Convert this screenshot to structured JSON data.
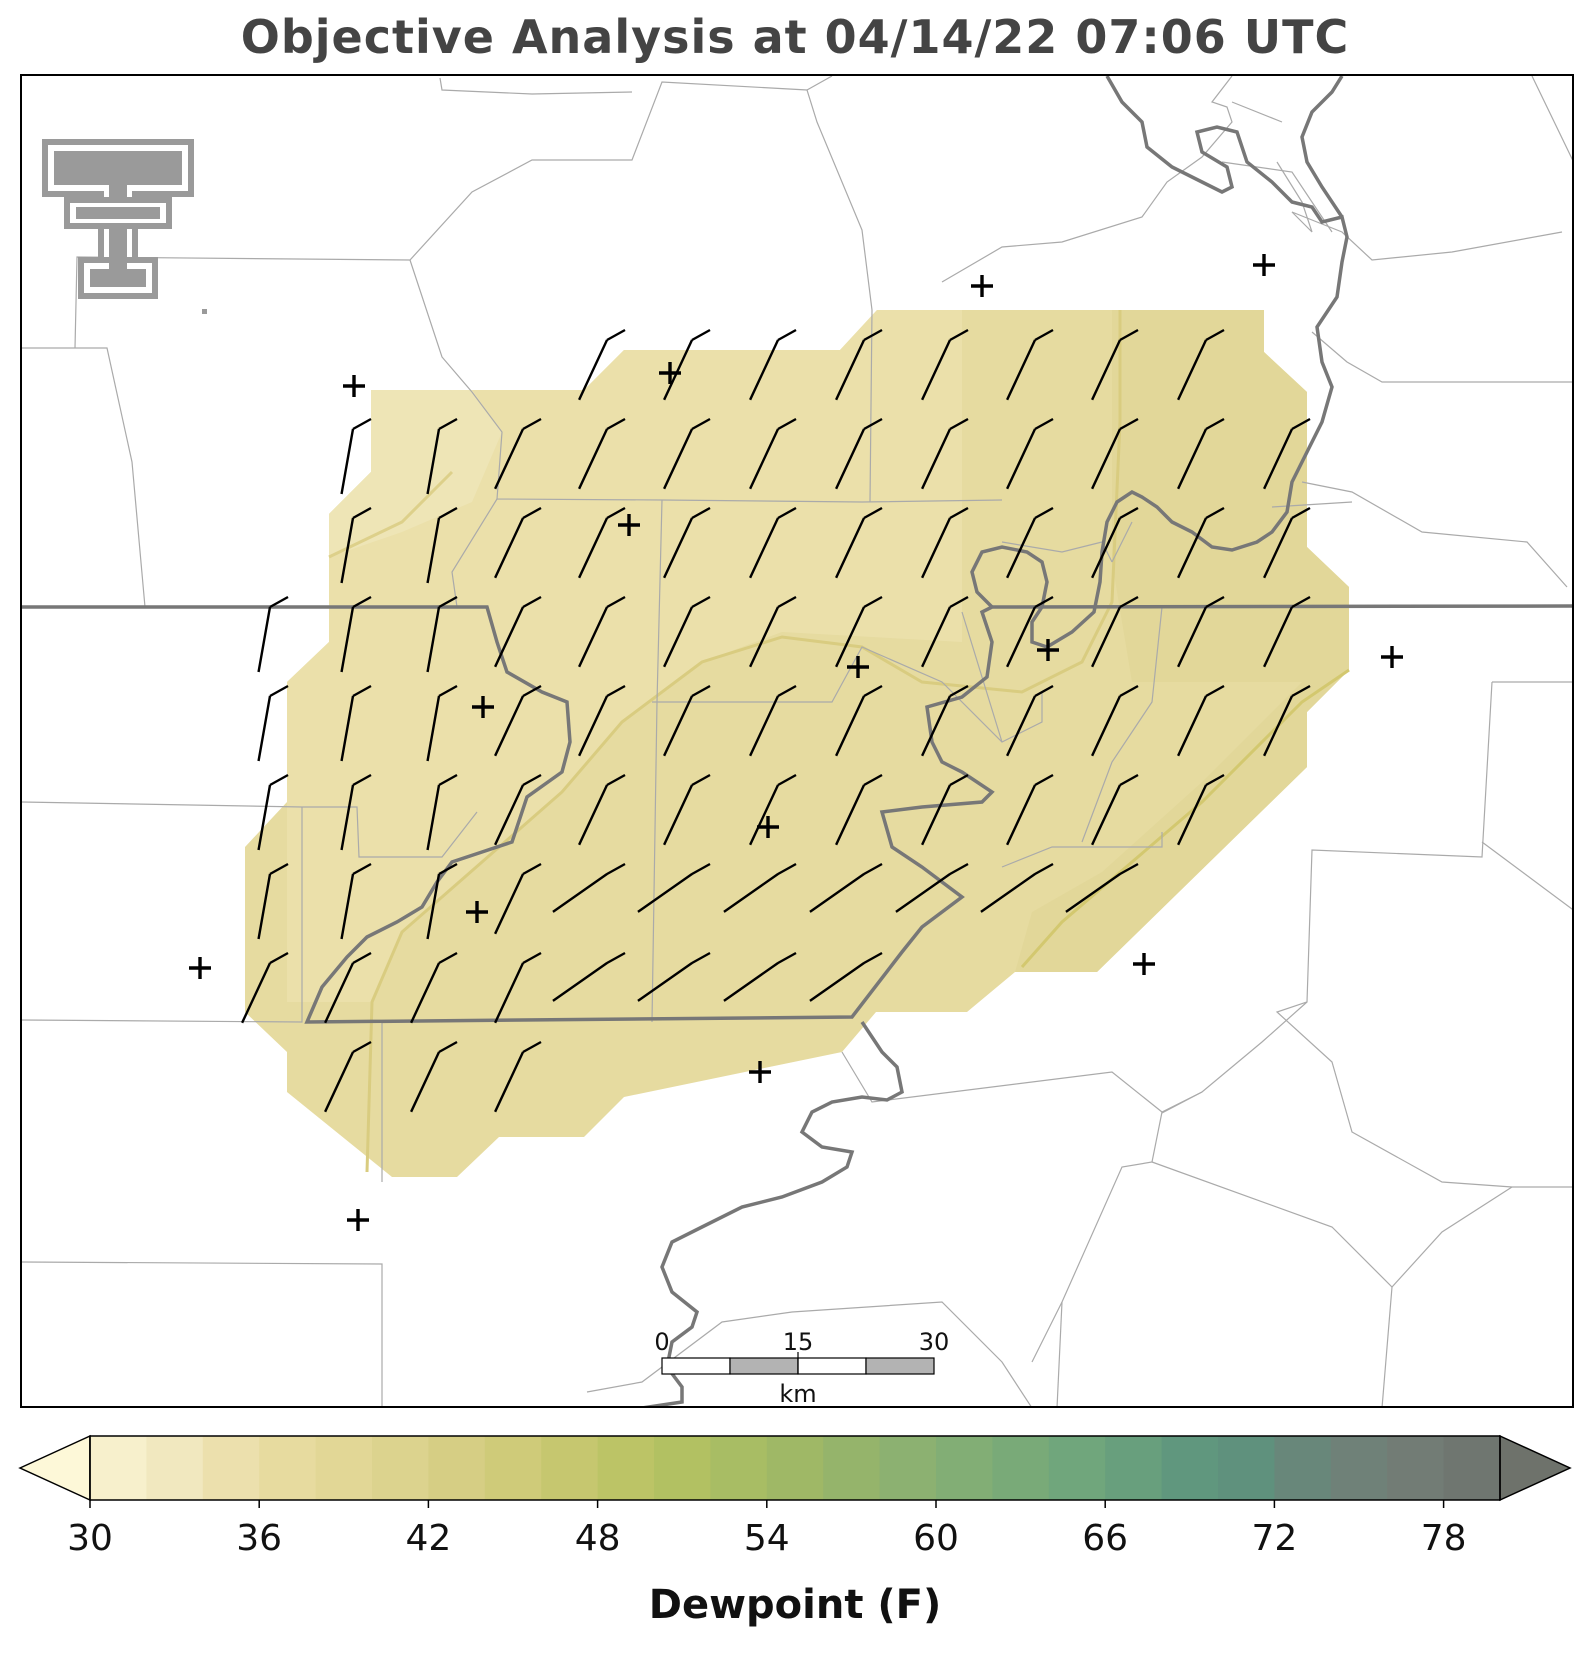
{
  "title": "Objective Analysis at 04/14/22 07:06 UTC",
  "colorbar": {
    "label": "Dewpoint (F)",
    "ticks": [
      "30",
      "36",
      "42",
      "48",
      "54",
      "60",
      "66",
      "72",
      "78"
    ],
    "min": 30,
    "max": 80,
    "step": 2,
    "extend": "both",
    "colors": [
      "#fdf8d8",
      "#f7f0cc",
      "#f1e8bf",
      "#ece0ad",
      "#e7db9f",
      "#e2d796",
      "#dcd38e",
      "#d6ce84",
      "#cfcb79",
      "#c6c76f",
      "#bcc466",
      "#b2c162",
      "#a8bd64",
      "#9fb866",
      "#95b46b",
      "#8cb171",
      "#82ae75",
      "#79aa78",
      "#70a67c",
      "#689f7d",
      "#60977e",
      "#5f917d",
      "#68877a",
      "#6f8178",
      "#727c75",
      "#6f7670",
      "#6e726b"
    ]
  },
  "scale_bar": {
    "labels": [
      "0",
      "15",
      "30"
    ],
    "unit": "km"
  },
  "logo": {
    "name": "texas-tech-double-t-logo"
  },
  "map": {
    "field_colors": {
      "light": "#eee3b2",
      "mid": "#e6dba0",
      "dark": "#e2d799"
    },
    "border_color": "#777777",
    "county_color": "#aaaaaa",
    "station_marker": "+"
  }
}
